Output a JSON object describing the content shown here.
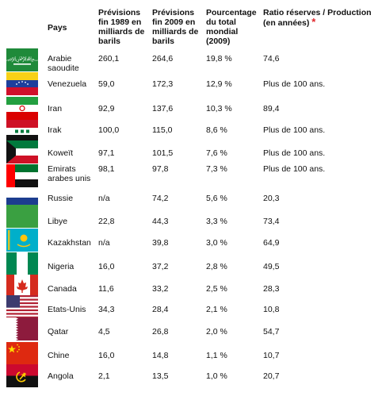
{
  "headers": {
    "pays": "Pays",
    "v1989": "Prévisions fin 1989 en milliards de barils",
    "v2009": "Prévisions fin 2009 en milliards de barils",
    "pct": "Pourcentage du total mondial (2009)",
    "ratio": "Ratio réserves / Production (en années)",
    "ratio_star": "*"
  },
  "rows": [
    {
      "country": "Arabie saoudite",
      "v1989": "260,1",
      "v2009": "264,6",
      "pct": "19,8 %",
      "ratio": "74,6",
      "flag": "saudi-arabia-flag"
    },
    {
      "country": "Venezuela",
      "v1989": "59,0",
      "v2009": "172,3",
      "pct": "12,9 %",
      "ratio": "Plus de 100 ans.",
      "flag": "venezuela-flag"
    },
    {
      "country": "Iran",
      "v1989": "92,9",
      "v2009": "137,6",
      "pct": "10,3 %",
      "ratio": "89,4",
      "flag": "iran-flag"
    },
    {
      "country": "Irak",
      "v1989": "100,0",
      "v2009": "115,0",
      "pct": "8,6 %",
      "ratio": "Plus de 100 ans.",
      "flag": "iraq-flag"
    },
    {
      "country": "Koweït",
      "v1989": "97,1",
      "v2009": "101,5",
      "pct": "7,6 %",
      "ratio": "Plus de 100 ans.",
      "flag": "kuwait-flag"
    },
    {
      "country": "Emirats arabes unis",
      "v1989": "98,1",
      "v2009": "97,8",
      "pct": "7,3 %",
      "ratio": "Plus de 100 ans.",
      "flag": "uae-flag"
    },
    {
      "country": "Russie",
      "v1989": "n/a",
      "v2009": "74,2",
      "pct": "5,6 %",
      "ratio": "20,3",
      "flag": "russia-flag"
    },
    {
      "country": "Libye",
      "v1989": "22,8",
      "v2009": "44,3",
      "pct": "3,3 %",
      "ratio": "73,4",
      "flag": "libya-flag"
    },
    {
      "country": "Kazakhstan",
      "v1989": "n/a",
      "v2009": "39,8",
      "pct": "3,0 %",
      "ratio": "64,9",
      "flag": "kazakhstan-flag"
    },
    {
      "country": "Nigeria",
      "v1989": "16,0",
      "v2009": "37,2",
      "pct": "2,8 %",
      "ratio": "49,5",
      "flag": "nigeria-flag"
    },
    {
      "country": "Canada",
      "v1989": "11,6",
      "v2009": "33,2",
      "pct": "2,5 %",
      "ratio": "28,3",
      "flag": "canada-flag"
    },
    {
      "country": "Etats-Unis",
      "v1989": "34,3",
      "v2009": "28,4",
      "pct": "2,1 %",
      "ratio": "10,8",
      "flag": "usa-flag"
    },
    {
      "country": "Qatar",
      "v1989": "4,5",
      "v2009": "26,8",
      "pct": "2,0 %",
      "ratio": "54,7",
      "flag": "qatar-flag"
    },
    {
      "country": "Chine",
      "v1989": "16,0",
      "v2009": "14,8",
      "pct": "1,1 %",
      "ratio": "10,7",
      "flag": "china-flag"
    },
    {
      "country": "Angola",
      "v1989": "2,1",
      "v2009": "13,5",
      "pct": "1,0 %",
      "ratio": "20,7",
      "flag": "angola-flag"
    }
  ],
  "colors": {
    "star": "#e0262b"
  }
}
